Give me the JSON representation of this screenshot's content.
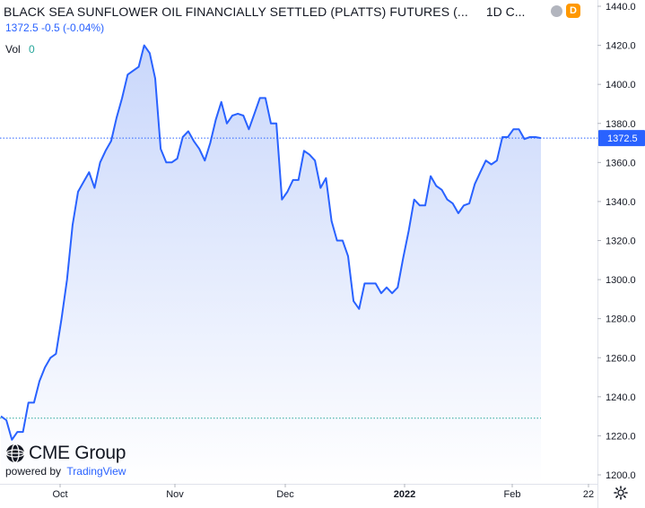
{
  "header": {
    "title": "BLACK SEA SUNFLOWER OIL FINANCIALLY SETTLED (PLATTS) FUTURES (...",
    "interval": "1D",
    "exchange_abbrev": "C...",
    "badge_letter": "D",
    "quote": "1372.5  -0.5 (-0.04%)",
    "volume_label": "Vol",
    "volume_value": "0"
  },
  "branding": {
    "logo_name": "CME Group",
    "powered_by": "powered by",
    "platform": "TradingView"
  },
  "colors": {
    "line": "#2962ff",
    "area_top": "#c9d7fb",
    "area_bottom": "#ffffff",
    "last_price_label_bg": "#2962ff",
    "reference_line": "#26a69a"
  },
  "icons": {
    "settings": "gear-icon"
  },
  "chart_data": {
    "type": "area",
    "ylim": [
      1200,
      1440
    ],
    "y_ticks": [
      "1440.0",
      "1420.0",
      "1400.0",
      "1380.0",
      "1360.0",
      "1340.0",
      "1320.0",
      "1300.0",
      "1280.0",
      "1260.0",
      "1240.0",
      "1220.0",
      "1200.0"
    ],
    "x_ticks": [
      "Oct",
      "Nov",
      "Dec",
      "2022",
      "Feb",
      "22"
    ],
    "last_price_label": "1372.5",
    "last_price": 1372.5,
    "reference_level": 1229,
    "values": [
      1230,
      1228,
      1218,
      1222,
      1222,
      1237,
      1237,
      1248,
      1255,
      1260,
      1262,
      1280,
      1300,
      1328,
      1345,
      1350,
      1355,
      1347,
      1360,
      1366,
      1371,
      1383,
      1393,
      1405,
      1407,
      1409,
      1420,
      1416,
      1403,
      1367,
      1360,
      1360,
      1362,
      1373,
      1376,
      1371,
      1367,
      1361,
      1370,
      1382,
      1391,
      1380,
      1384,
      1385,
      1384,
      1377,
      1385,
      1393,
      1393,
      1380,
      1380,
      1341,
      1345,
      1351,
      1351,
      1366,
      1364,
      1361,
      1347,
      1352,
      1330,
      1320,
      1320,
      1312,
      1289,
      1285,
      1298,
      1298,
      1298,
      1293,
      1296,
      1293,
      1296,
      1311,
      1325,
      1341,
      1338,
      1338,
      1353,
      1348,
      1346,
      1341,
      1339,
      1334,
      1338,
      1339,
      1349,
      1355,
      1361,
      1359,
      1361,
      1373,
      1373,
      1377,
      1377,
      1372,
      1373,
      1373,
      1372.5
    ],
    "grid": false,
    "legend": "none"
  }
}
